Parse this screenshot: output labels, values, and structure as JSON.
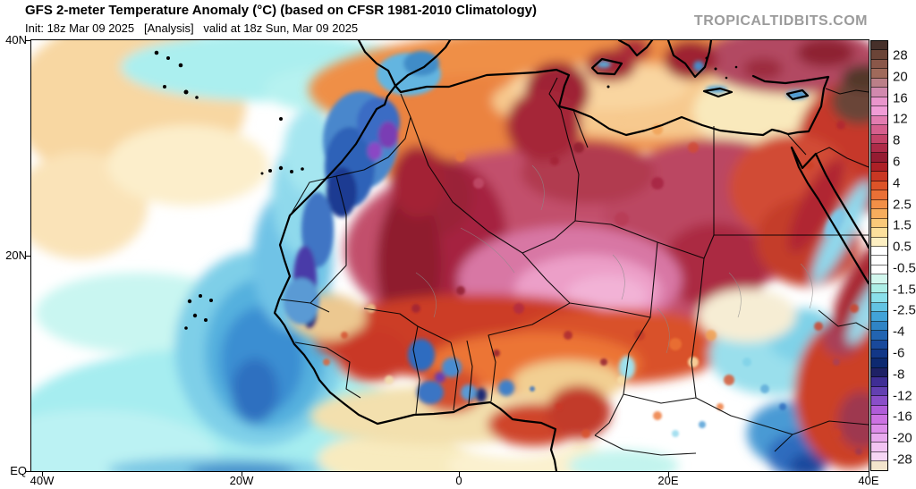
{
  "header": {
    "title": "GFS 2-meter Temperature Anomaly (°C) (based on CFSR 1981-2010 Climatology)",
    "subtitle": "Init: 18z Mar 09 2025   [Analysis]   valid at 18z Sun, Mar 09 2025",
    "watermark": "TROPICALTIDBITS.COM"
  },
  "map": {
    "y_axis_labels": [
      "40N",
      "20N",
      "EQ"
    ],
    "x_axis_labels": [
      "40W",
      "20W",
      "0",
      "20E",
      "40E"
    ]
  },
  "colorbar": {
    "unit": "°C",
    "tick_labels": [
      "28",
      "20",
      "16",
      "12",
      "8",
      "6",
      "4",
      "2.5",
      "1.5",
      "0.5",
      "-0.5",
      "-1.5",
      "-2.5",
      "-4",
      "-6",
      "-8",
      "-12",
      "-16",
      "-20",
      "-28"
    ],
    "segment_colors": [
      "#46302a",
      "#6b4437",
      "#8a5749",
      "#a06a5b",
      "#bb7f88",
      "#d189ae",
      "#e995cc",
      "#f09cd6",
      "#e27cb0",
      "#d55f8d",
      "#c44368",
      "#ae2b48",
      "#951c32",
      "#ad2026",
      "#c93723",
      "#dc5328",
      "#ea7036",
      "#f28f47",
      "#f7ad5d",
      "#fac979",
      "#fce09c",
      "#fdefc2",
      "#ffffff",
      "#ffffff",
      "#ffffff",
      "#d2f7ee",
      "#aceee6",
      "#8adfea",
      "#63c3e3",
      "#42a3d8",
      "#2f84c5",
      "#2264b1",
      "#19499b",
      "#123787",
      "#0d2970",
      "#1e2165",
      "#3f2e95",
      "#6340b2",
      "#8a4ec9",
      "#b05cd9",
      "#cc72e2",
      "#dd8de9",
      "#e9aaee",
      "#f2c4f2",
      "#f6d6f4",
      "#f3e4cc"
    ]
  },
  "colors": {
    "background": "#ffffff",
    "frame": "#000000",
    "watermark_gray": "#9b9b9b",
    "warm_core_pink": "#ec9fc8",
    "sahara_rose": "#c2506c",
    "cold_ocean_blue": "#3a8ed2",
    "coastal_purple": "#4a3aa8"
  }
}
